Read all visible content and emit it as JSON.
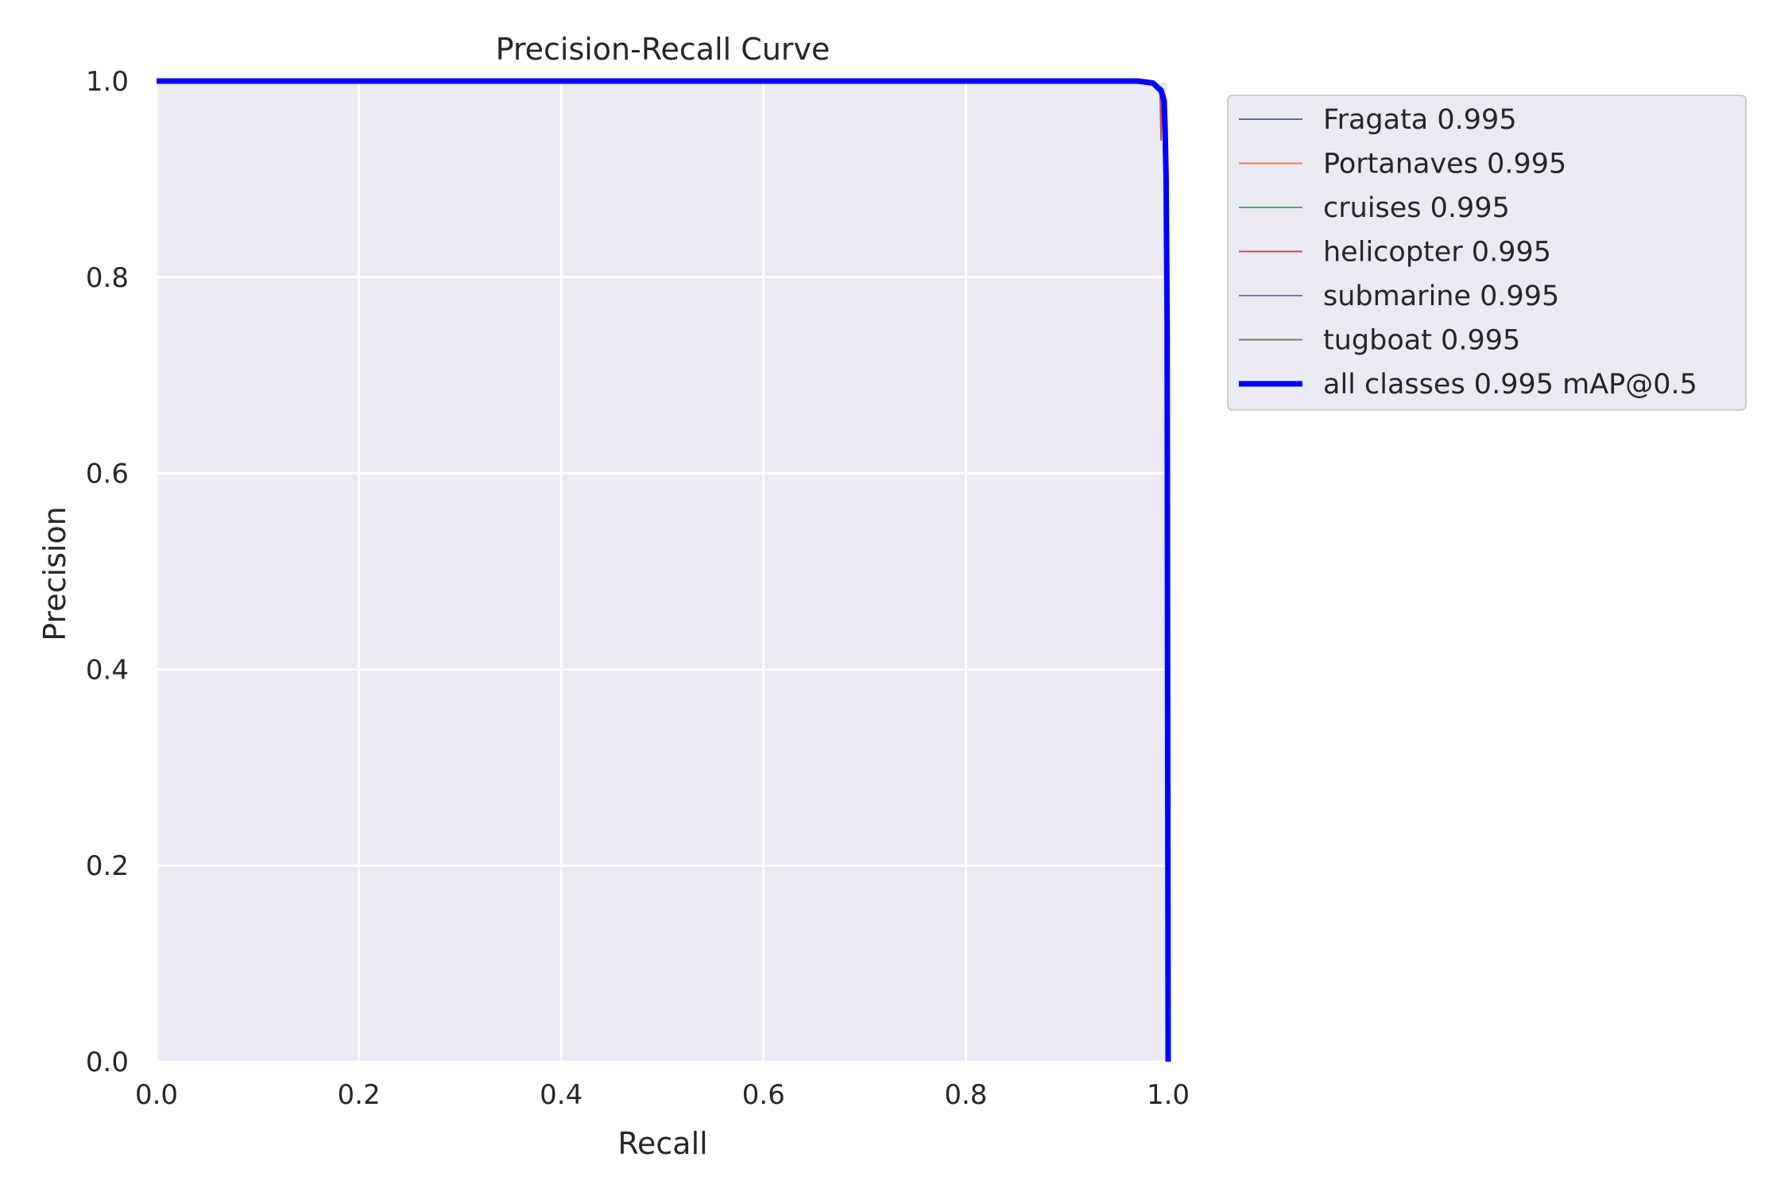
{
  "chart_data": {
    "type": "line",
    "title": "Precision-Recall Curve",
    "xlabel": "Recall",
    "ylabel": "Precision",
    "xlim": [
      0,
      1
    ],
    "ylim": [
      0,
      1
    ],
    "xticks": [
      "0.0",
      "0.2",
      "0.4",
      "0.6",
      "0.8",
      "1.0"
    ],
    "yticks": [
      "0.0",
      "0.2",
      "0.4",
      "0.6",
      "0.8",
      "1.0"
    ],
    "grid": true,
    "legend_position": "outside-top-right",
    "series": [
      {
        "name": "Fragata 0.995",
        "color": "#4c72b0",
        "width": 2,
        "x": [
          0,
          0.97,
          0.99,
          0.995,
          0.997,
          0.998,
          1.0
        ],
        "y": [
          1,
          1,
          0.995,
          0.99,
          0.985,
          0.95,
          0.0
        ]
      },
      {
        "name": "Portanaves 0.995",
        "color": "#dd8452",
        "width": 2,
        "x": [
          0,
          0.985,
          0.995,
          0.998,
          1.0
        ],
        "y": [
          1,
          1,
          0.99,
          0.97,
          0.0
        ]
      },
      {
        "name": "cruises 0.995",
        "color": "#55a868",
        "width": 2,
        "x": [
          0,
          0.985,
          0.995,
          0.998,
          1.0
        ],
        "y": [
          1,
          1,
          0.992,
          0.97,
          0.0
        ]
      },
      {
        "name": "helicopter 0.995",
        "color": "#c44e52",
        "width": 2,
        "x": [
          0,
          0.98,
          0.992,
          0.993,
          0.994,
          0.998,
          1.0
        ],
        "y": [
          1,
          1,
          0.99,
          0.94,
          0.99,
          0.97,
          0.0
        ]
      },
      {
        "name": "submarine 0.995",
        "color": "#8172b3",
        "width": 2,
        "x": [
          0,
          0.985,
          0.995,
          0.998,
          1.0
        ],
        "y": [
          1,
          1,
          0.99,
          0.96,
          0.0
        ]
      },
      {
        "name": "tugboat 0.995",
        "color": "#937860",
        "width": 2,
        "x": [
          0,
          0.985,
          0.995,
          0.998,
          1.0
        ],
        "y": [
          1,
          1,
          0.99,
          0.96,
          0.0
        ]
      },
      {
        "name": "all classes 0.995 mAP@0.5",
        "color": "#0000ff",
        "width": 7,
        "x": [
          0,
          0.97,
          0.985,
          0.993,
          0.996,
          0.997,
          0.998,
          0.999,
          1.0
        ],
        "y": [
          1,
          1,
          0.998,
          0.99,
          0.98,
          0.95,
          0.9,
          0.75,
          0.0
        ]
      }
    ]
  }
}
